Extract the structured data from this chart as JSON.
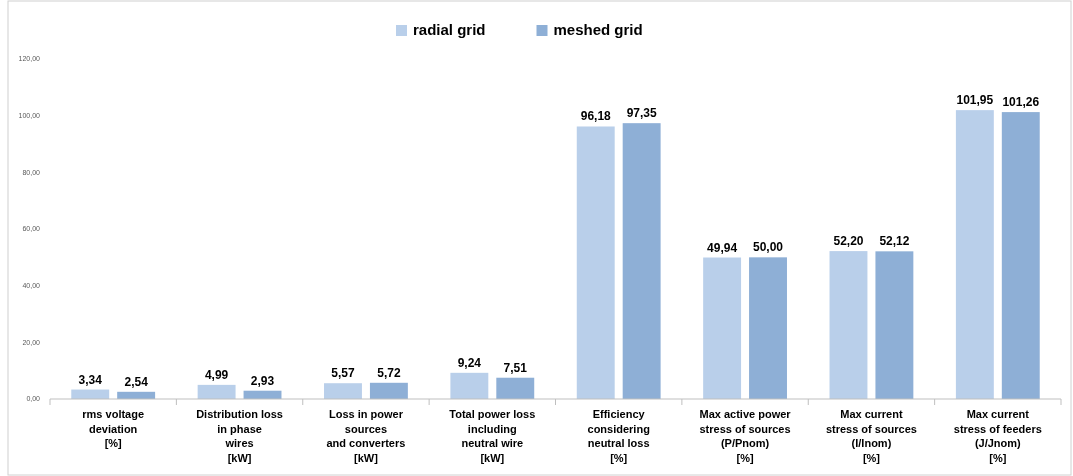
{
  "chart_data": {
    "type": "bar",
    "categories": [
      "rms voltage\ndeviation\n[%]",
      "Distribution loss\nin phase\nwires\n[kW]",
      "Loss in power\nsources\nand converters\n[kW]",
      "Total power loss\nincluding\nneutral wire\n[kW]",
      "Efficiency\nconsidering\nneutral loss\n[%]",
      "Max active power\nstress of sources\n(P/Pnom)\n[%]",
      "Max current\nstress of sources\n(I/Inom)\n[%]",
      "Max current\nstress of feeders\n(J/Jnom)\n[%]"
    ],
    "series": [
      {
        "name": "radial grid",
        "color": "#b9cfea",
        "values": [
          3.34,
          4.99,
          5.57,
          9.24,
          96.18,
          49.94,
          52.2,
          101.95
        ],
        "value_labels": [
          "3,34",
          "4,99",
          "5,57",
          "9,24",
          "96,18",
          "49,94",
          "52,20",
          "101,95"
        ]
      },
      {
        "name": "meshed grid",
        "color": "#8eafd6",
        "values": [
          2.54,
          2.93,
          5.72,
          7.51,
          97.35,
          50.0,
          52.12,
          101.26
        ],
        "value_labels": [
          "2,54",
          "2,93",
          "5,72",
          "7,51",
          "97,35",
          "50,00",
          "52,12",
          "101,26"
        ]
      }
    ],
    "ylim": [
      0,
      120
    ],
    "yticks": [
      {
        "value": 0,
        "label": "0,00"
      },
      {
        "value": 20,
        "label": "20,00"
      },
      {
        "value": 40,
        "label": "40,00"
      },
      {
        "value": 60,
        "label": "60,00"
      },
      {
        "value": 80,
        "label": "80,00"
      },
      {
        "value": 100,
        "label": "100,00"
      },
      {
        "value": 120,
        "label": "120,00"
      }
    ],
    "grid": false,
    "legend": "top"
  }
}
